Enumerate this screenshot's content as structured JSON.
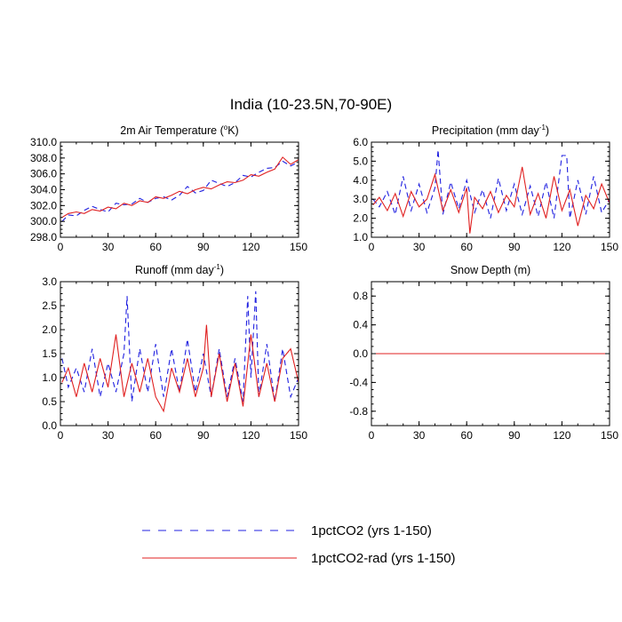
{
  "title": "India (10-23.5N,70-90E)",
  "legend": {
    "placement": "bottom-center",
    "entries": [
      {
        "label": "1pctCO2 (yrs 1-150)",
        "color": "#2020e0",
        "style": "dashed"
      },
      {
        "label": "1pctCO2-rad (yrs 1-150)",
        "color": "#e02020",
        "style": "solid"
      }
    ]
  },
  "chart_data": [
    {
      "type": "line",
      "title": "2m Air Temperature (°K)",
      "title_base": "2m Air Temperature (",
      "title_sup": "o",
      "title_after": "K)",
      "xlim": [
        0,
        150
      ],
      "xticks": [
        "0",
        "30",
        "60",
        "90",
        "120",
        "150"
      ],
      "ylim": [
        298,
        310
      ],
      "yticks": [
        "298.0",
        "300.0",
        "302.0",
        "304.0",
        "306.0",
        "308.0",
        "310.0"
      ],
      "series": [
        {
          "name": "1pctCO2 (yrs 1-150)",
          "x": [
            1,
            5,
            10,
            15,
            20,
            25,
            30,
            35,
            40,
            45,
            50,
            55,
            60,
            65,
            70,
            75,
            80,
            85,
            90,
            95,
            100,
            105,
            110,
            115,
            120,
            125,
            130,
            135,
            140,
            145,
            150
          ],
          "values": [
            300.0,
            300.8,
            300.7,
            301.4,
            301.9,
            301.5,
            301.2,
            302.3,
            302.1,
            302.2,
            302.9,
            302.4,
            302.9,
            303.1,
            302.7,
            303.3,
            304.4,
            303.6,
            303.9,
            305.2,
            304.8,
            304.4,
            304.9,
            305.8,
            305.6,
            306.2,
            306.7,
            306.8,
            307.6,
            307.0,
            307.5
          ]
        },
        {
          "name": "1pctCO2-rad (yrs 1-150)",
          "x": [
            1,
            5,
            10,
            15,
            20,
            25,
            30,
            35,
            40,
            45,
            50,
            55,
            60,
            65,
            70,
            75,
            80,
            85,
            90,
            95,
            100,
            105,
            110,
            115,
            120,
            125,
            130,
            135,
            140,
            145,
            150
          ],
          "values": [
            300.5,
            301.0,
            301.2,
            301.0,
            301.5,
            301.3,
            301.8,
            301.6,
            302.3,
            302.0,
            302.6,
            302.4,
            303.1,
            302.9,
            303.3,
            303.8,
            303.5,
            304.0,
            304.3,
            304.1,
            304.6,
            305.0,
            304.9,
            305.2,
            305.9,
            305.7,
            306.2,
            306.6,
            308.1,
            307.2,
            307.8
          ]
        }
      ]
    },
    {
      "type": "line",
      "title": "Precipitation (mm day-1)",
      "title_base": "Precipitation (mm day",
      "title_sup": "-1",
      "title_after": ")",
      "xlim": [
        0,
        150
      ],
      "xticks": [
        "0",
        "30",
        "60",
        "90",
        "120",
        "150"
      ],
      "ylim": [
        1.0,
        6.0
      ],
      "yticks": [
        "1.0",
        "2.0",
        "3.0",
        "4.0",
        "5.0",
        "6.0"
      ],
      "series": [
        {
          "name": "1pctCO2 (yrs 1-150)",
          "x": [
            1,
            5,
            10,
            15,
            20,
            25,
            30,
            35,
            40,
            42,
            45,
            50,
            55,
            60,
            65,
            70,
            75,
            80,
            85,
            90,
            95,
            100,
            105,
            110,
            115,
            120,
            123,
            125,
            130,
            135,
            140,
            145,
            150
          ],
          "values": [
            3.0,
            2.6,
            3.4,
            2.2,
            4.2,
            2.4,
            3.8,
            2.3,
            3.6,
            5.6,
            2.2,
            3.9,
            2.5,
            4.0,
            2.3,
            3.5,
            2.0,
            4.1,
            2.4,
            3.8,
            2.2,
            3.7,
            2.1,
            3.9,
            2.0,
            5.3,
            5.3,
            2.0,
            4.0,
            2.2,
            4.2,
            2.3,
            3.0
          ]
        },
        {
          "name": "1pctCO2-rad (yrs 1-150)",
          "x": [
            1,
            5,
            10,
            15,
            20,
            25,
            30,
            35,
            40,
            45,
            50,
            55,
            60,
            62,
            65,
            70,
            75,
            80,
            85,
            90,
            95,
            100,
            105,
            110,
            115,
            120,
            125,
            130,
            135,
            140,
            145,
            150
          ],
          "values": [
            2.7,
            3.1,
            2.4,
            3.3,
            2.1,
            3.4,
            2.6,
            3.0,
            4.3,
            2.4,
            3.5,
            2.3,
            3.6,
            1.2,
            3.1,
            2.5,
            3.4,
            2.3,
            3.2,
            2.6,
            4.7,
            2.2,
            3.3,
            2.0,
            4.2,
            2.4,
            3.5,
            1.6,
            3.2,
            2.5,
            3.8,
            2.8
          ]
        }
      ]
    },
    {
      "type": "line",
      "title": "Runoff (mm day-1)",
      "title_base": "Runoff (mm day",
      "title_sup": "-1",
      "title_after": ")",
      "xlim": [
        0,
        150
      ],
      "xticks": [
        "0",
        "30",
        "60",
        "90",
        "120",
        "150"
      ],
      "ylim": [
        0.0,
        3.0
      ],
      "yticks": [
        "0.0",
        "0.5",
        "1.0",
        "1.5",
        "2.0",
        "2.5",
        "3.0"
      ],
      "series": [
        {
          "name": "1pctCO2 (yrs 1-150)",
          "x": [
            1,
            5,
            10,
            15,
            20,
            25,
            30,
            35,
            40,
            42,
            45,
            50,
            55,
            60,
            65,
            70,
            75,
            80,
            85,
            90,
            95,
            100,
            105,
            110,
            115,
            118,
            120,
            123,
            125,
            130,
            135,
            140,
            145,
            150
          ],
          "values": [
            1.4,
            0.8,
            1.2,
            0.7,
            1.6,
            0.6,
            1.3,
            0.7,
            1.5,
            2.7,
            0.5,
            1.6,
            0.7,
            1.7,
            0.6,
            1.6,
            0.7,
            1.8,
            0.7,
            1.5,
            0.6,
            1.6,
            0.6,
            1.4,
            0.5,
            2.7,
            1.0,
            2.8,
            0.6,
            1.7,
            0.5,
            1.6,
            0.6,
            1.0
          ]
        },
        {
          "name": "1pctCO2-rad (yrs 1-150)",
          "x": [
            1,
            5,
            10,
            15,
            20,
            25,
            30,
            35,
            40,
            45,
            50,
            55,
            60,
            65,
            70,
            75,
            80,
            85,
            90,
            92,
            95,
            100,
            105,
            110,
            115,
            120,
            125,
            130,
            135,
            140,
            145,
            150
          ],
          "values": [
            0.9,
            1.2,
            0.6,
            1.3,
            0.7,
            1.4,
            0.8,
            1.9,
            0.6,
            1.3,
            0.7,
            1.4,
            0.6,
            0.3,
            1.2,
            0.7,
            1.4,
            0.6,
            1.2,
            2.1,
            0.6,
            1.5,
            0.5,
            1.3,
            0.4,
            1.9,
            0.6,
            1.3,
            0.5,
            1.4,
            1.6,
            0.9
          ]
        }
      ]
    },
    {
      "type": "line",
      "title": "Snow Depth (m)",
      "title_base": "Snow Depth (m)",
      "title_sup": "",
      "title_after": "",
      "xlim": [
        0,
        150
      ],
      "xticks": [
        "0",
        "30",
        "60",
        "90",
        "120",
        "150"
      ],
      "ylim": [
        -1.0,
        1.0
      ],
      "yticks": [
        "-0.8",
        "-0.4",
        "0.0",
        "0.4",
        "0.8"
      ],
      "series": [
        {
          "name": "1pctCO2 (yrs 1-150)",
          "x": [
            1,
            150
          ],
          "values": [
            0.0,
            0.0
          ]
        },
        {
          "name": "1pctCO2-rad (yrs 1-150)",
          "x": [
            1,
            150
          ],
          "values": [
            0.0,
            0.0
          ]
        }
      ]
    }
  ]
}
